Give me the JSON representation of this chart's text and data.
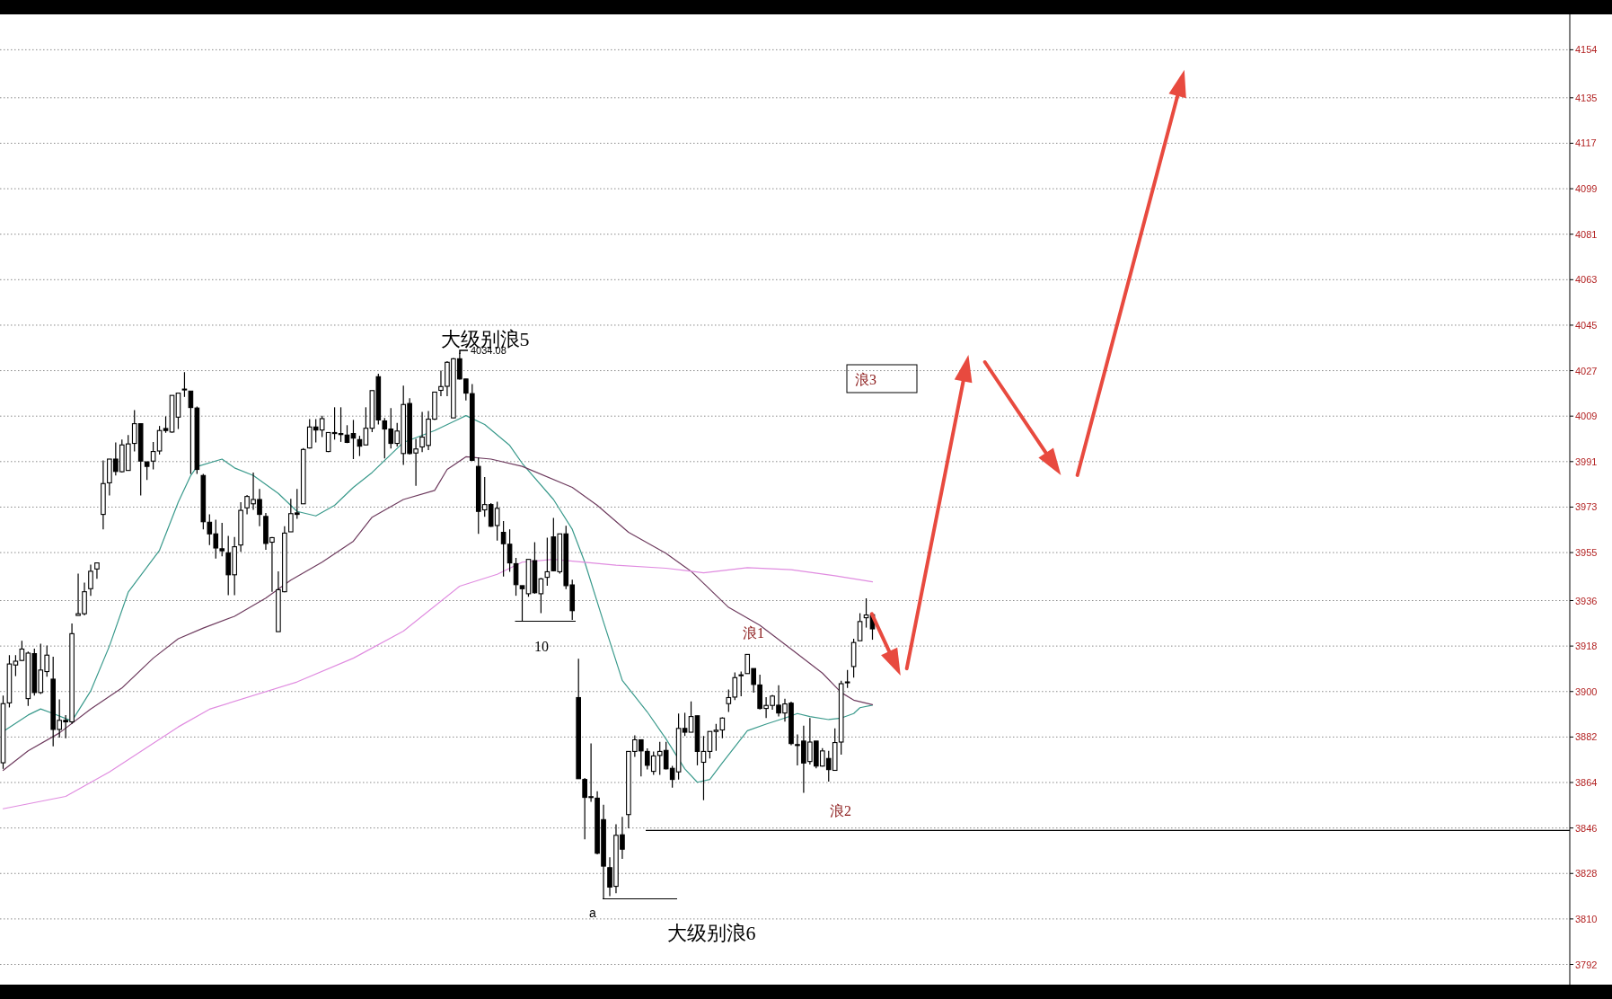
{
  "chart_data": {
    "type": "candlestick",
    "categories": [
      null,
      null,
      null,
      null,
      null,
      null,
      null,
      null,
      null,
      null,
      null,
      null,
      null,
      null,
      null,
      null,
      null,
      null,
      null,
      null,
      null,
      null,
      null,
      null,
      null,
      null,
      null,
      null,
      null,
      null,
      null,
      null,
      null,
      null,
      null,
      null,
      null,
      null,
      null,
      null,
      null,
      null,
      null,
      null,
      null,
      null,
      null,
      null,
      null,
      null,
      null,
      null,
      null,
      null,
      null,
      null,
      null,
      null,
      null,
      null,
      null,
      null,
      null,
      null,
      null,
      null,
      null,
      null,
      null,
      null,
      null,
      null,
      null,
      null,
      null,
      null,
      null,
      null,
      null,
      null,
      null,
      null,
      null,
      null,
      null,
      null,
      null,
      null,
      null,
      null,
      null,
      null,
      null,
      null,
      null,
      null,
      null,
      null,
      null,
      null,
      null,
      null,
      null,
      null,
      null,
      null,
      null,
      null,
      null,
      null,
      null,
      null,
      null,
      null,
      null,
      null,
      null,
      null,
      null,
      null,
      null,
      null,
      null,
      null,
      null,
      null,
      null,
      null,
      null,
      null,
      null,
      null,
      null,
      null,
      null,
      null,
      null,
      null,
      null,
      null,
      null,
      null,
      null,
      null,
      null,
      null,
      null,
      null,
      null,
      null,
      null,
      null,
      null,
      null,
      null,
      null,
      null,
      null,
      null,
      null,
      null,
      null,
      null,
      null,
      null,
      null,
      null,
      null,
      null,
      null,
      null,
      null,
      null,
      null,
      null,
      null,
      null,
      null,
      null,
      null,
      null,
      null,
      null,
      null,
      null,
      null,
      null,
      null,
      null,
      null,
      null,
      null,
      null,
      null,
      null,
      null,
      null,
      null,
      null,
      null,
      null,
      null,
      null,
      null,
      null,
      null,
      null,
      null,
      null,
      null,
      null,
      null,
      null,
      null,
      null,
      null,
      null,
      null,
      null,
      null,
      null,
      null,
      null,
      null,
      null,
      null,
      null,
      null,
      null,
      null,
      null,
      null,
      null,
      null,
      null,
      null,
      null,
      null,
      null,
      null,
      null,
      null,
      null,
      null,
      null,
      null,
      null,
      null,
      null,
      null,
      null
    ],
    "ohlc": [
      [
        3871.8,
        3898.4,
        3869.4,
        3895.2
      ],
      [
        3895.5,
        3914.4,
        3893.7,
        3910.9
      ],
      [
        3910.5,
        3914.4,
        3906.1,
        3912.0
      ],
      [
        3912.3,
        3920.1,
        3912.0,
        3916.8
      ],
      [
        3897.2,
        3915.8,
        3894.3,
        3915.2
      ],
      [
        3915.0,
        3917.0,
        3898.4,
        3899.6
      ],
      [
        3899.6,
        3918.9,
        3899.0,
        3908.5
      ],
      [
        3907.9,
        3918.2,
        3905.9,
        3914.4
      ],
      [
        3904.9,
        3913.8,
        3878.3,
        3885.0
      ],
      [
        3885.0,
        3896.9,
        3881.8,
        3888.6
      ],
      [
        3888.6,
        3890.7,
        3881.5,
        3888.0
      ],
      [
        3888.0,
        3926.9,
        3887.2,
        3922.9
      ],
      [
        3930.1,
        3946.7,
        3930.1,
        3930.8
      ],
      [
        3930.8,
        3943.1,
        3930.1,
        3939.5
      ],
      [
        3940.7,
        3950.2,
        3937.9,
        3947.6
      ],
      [
        3948.5,
        3950.9,
        3944.6,
        3950.9
      ],
      [
        3970.1,
        3991.5,
        3964.2,
        3982.3
      ],
      [
        3982.6,
        3992.0,
        3977.6,
        3992.0
      ],
      [
        3992.0,
        3998.6,
        3985.5,
        3987.1
      ],
      [
        3987.0,
        3999.7,
        3986.7,
        3997.6
      ],
      [
        3987.5,
        4001.5,
        3987.5,
        3998.0
      ],
      [
        3998.2,
        4011.4,
        3995.0,
        4006.0
      ],
      [
        4006.0,
        4006.0,
        3977.6,
        3991.2
      ],
      [
        3990.9,
        3990.9,
        3983.7,
        3989.1
      ],
      [
        3991.2,
        3998.8,
        3987.9,
        3995.0
      ],
      [
        3995.2,
        4005.1,
        3993.8,
        4003.3
      ],
      [
        4004.1,
        4008.9,
        4002.4,
        4003.3
      ],
      [
        4002.7,
        4017.2,
        4002.4,
        4017.2
      ],
      [
        4008.6,
        4018.1,
        4003.9,
        4018.1
      ],
      [
        4019.4,
        4026.4,
        4016.6,
        4019.7
      ],
      [
        4018.9,
        4018.9,
        3986.1,
        4012.4
      ],
      [
        4012.2,
        4012.8,
        3986.1,
        3987.9
      ],
      [
        3985.5,
        3986.1,
        3964.2,
        3967.2
      ],
      [
        3967.0,
        3970.1,
        3958.0,
        3962.4
      ],
      [
        3962.4,
        3968.0,
        3952.6,
        3956.8
      ],
      [
        3956.5,
        3966.8,
        3953.5,
        3955.7
      ],
      [
        3954.9,
        3961.6,
        3938.1,
        3946.2
      ],
      [
        3946.2,
        3961.2,
        3938.1,
        3957.3
      ],
      [
        3958.0,
        3974.9,
        3955.3,
        3971.7
      ],
      [
        3972.7,
        3977.8,
        3970.1,
        3977.2
      ],
      [
        3974.3,
        3986.7,
        3971.9,
        3976.0
      ],
      [
        3976.0,
        3980.2,
        3965.4,
        3970.1
      ],
      [
        3969.3,
        3970.7,
        3956.1,
        3958.6
      ],
      [
        3959.1,
        3961.2,
        3939.5,
        3960.9
      ],
      [
        3923.7,
        3947.6,
        3923.7,
        3940.3
      ],
      [
        3939.5,
        3965.4,
        3939.3,
        3962.7
      ],
      [
        3963.2,
        3976.3,
        3963.2,
        3970.4
      ],
      [
        3970.7,
        3980.2,
        3968.4,
        3970.1
      ],
      [
        3974.3,
        3996.4,
        3974.3,
        3995.8
      ],
      [
        3996.4,
        4007.8,
        3996.2,
        4004.7
      ],
      [
        4004.7,
        4007.8,
        3998.6,
        4003.5
      ],
      [
        4003.5,
        4009.2,
        4000.7,
        4008.0
      ],
      [
        3995.0,
        4002.5,
        3994.8,
        4002.5
      ],
      [
        4002.1,
        4012.5,
        3999.7,
        4002.5
      ],
      [
        4002.1,
        4012.5,
        3998.8,
        4001.7
      ],
      [
        4001.5,
        4005.4,
        3998.3,
        3998.6
      ],
      [
        4002.1,
        4007.5,
        3992.0,
        4000.3
      ],
      [
        3999.7,
        4001.2,
        3993.2,
        3997.1
      ],
      [
        3997.6,
        4012.5,
        3997.6,
        4004.2
      ],
      [
        4004.2,
        4019.1,
        4002.7,
        4019.1
      ],
      [
        4024.6,
        4025.8,
        4005.7,
        4007.5
      ],
      [
        4007.1,
        4008.3,
        3992.3,
        4003.9
      ],
      [
        4003.9,
        4012.2,
        3996.2,
        3998.2
      ],
      [
        3998.2,
        4006.3,
        3997.0,
        4003.1
      ],
      [
        3994.2,
        4021.1,
        3989.7,
        4013.6
      ],
      [
        4014.0,
        4016.1,
        3993.8,
        3994.2
      ],
      [
        3994.4,
        4000.0,
        3981.4,
        3996.0
      ],
      [
        3996.8,
        4010.7,
        3994.8,
        4000.7
      ],
      [
        3997.4,
        4011.0,
        3995.6,
        4007.8
      ],
      [
        4007.8,
        4018.7,
        4007.5,
        4018.5
      ],
      [
        4019.2,
        4027.0,
        4016.9,
        4020.7
      ],
      [
        4020.8,
        4030.8,
        4016.9,
        4030.3
      ],
      [
        4008.3,
        4032.0,
        4008.3,
        4031.7
      ],
      [
        4031.7,
        4034.08,
        4023.5,
        4023.7
      ],
      [
        4023.7,
        4023.7,
        4015.2,
        4018.1
      ],
      [
        4017.9,
        4021.7,
        3991.2,
        3991.5
      ],
      [
        3989.1,
        3992.6,
        3962.4,
        3971.3
      ],
      [
        3971.9,
        3984.9,
        3969.2,
        3974.0
      ],
      [
        3974.0,
        3974.6,
        3965.2,
        3965.4
      ],
      [
        3965.7,
        3975.1,
        3959.7,
        3972.5
      ],
      [
        3963.0,
        3967.5,
        3945.5,
        3958.5
      ],
      [
        3958.3,
        3964.2,
        3947.4,
        3950.9
      ],
      [
        3950.6,
        3952.9,
        3937.9,
        3942.3
      ],
      [
        3941.9,
        3941.9,
        3927.7,
        3940.7
      ],
      [
        3938.7,
        3952.3,
        3937.5,
        3952.3
      ],
      [
        3951.8,
        3959.1,
        3938.7,
        3939.1
      ],
      [
        3938.7,
        3945.0,
        3931.0,
        3944.6
      ],
      [
        3945.2,
        3960.9,
        3941.9,
        3947.4
      ],
      [
        3961.2,
        3968.7,
        3947.6,
        3947.8
      ],
      [
        3947.4,
        3962.4,
        3946.7,
        3962.4
      ],
      [
        3962.4,
        3965.6,
        3940.5,
        3941.9
      ],
      [
        3942.2,
        3944.3,
        3928.4,
        3932.0
      ],
      [
        3897.6,
        3913.0,
        3865.5,
        3865.5
      ],
      [
        3865.2,
        3865.8,
        3841.5,
        3858.1
      ],
      [
        3858.1,
        3879.5,
        3856.4,
        3858.4
      ],
      [
        3857.8,
        3860.5,
        3835.6,
        3836.0
      ],
      [
        3849.3,
        3855.2,
        3817.8,
        3830.9
      ],
      [
        3830.3,
        3834.4,
        3819.0,
        3822.6
      ],
      [
        3822.9,
        3847.5,
        3820.2,
        3843.1
      ],
      [
        3843.3,
        3850.4,
        3833.8,
        3837.6
      ],
      [
        3851.3,
        3876.3,
        3845.9,
        3876.3
      ],
      [
        3876.3,
        3882.7,
        3874.1,
        3880.9
      ],
      [
        3880.9,
        3880.9,
        3866.4,
        3876.5
      ],
      [
        3876.3,
        3877.5,
        3869.2,
        3870.8
      ],
      [
        3868.4,
        3876.3,
        3867.0,
        3874.5
      ],
      [
        3874.7,
        3880.1,
        3867.0,
        3876.3
      ],
      [
        3876.7,
        3880.1,
        3869.2,
        3869.4
      ],
      [
        3869.6,
        3870.6,
        3862.0,
        3865.2
      ],
      [
        3868.2,
        3891.3,
        3865.2,
        3885.4
      ],
      [
        3885.4,
        3891.6,
        3882.4,
        3883.9
      ],
      [
        3883.9,
        3896.1,
        3883.9,
        3890.1
      ],
      [
        3890.4,
        3890.4,
        3870.8,
        3876.3
      ],
      [
        3872.0,
        3882.4,
        3857.0,
        3876.3
      ],
      [
        3876.3,
        3884.2,
        3873.5,
        3884.2
      ],
      [
        3884.2,
        3887.2,
        3876.5,
        3884.7
      ],
      [
        3884.8,
        3889.8,
        3881.5,
        3889.5
      ],
      [
        3895.2,
        3900.8,
        3891.9,
        3897.6
      ],
      [
        3897.8,
        3907.6,
        3896.6,
        3905.5
      ],
      [
        3906.4,
        3907.9,
        3898.1,
        3906.6
      ],
      [
        3907.1,
        3914.7,
        3907.1,
        3914.7
      ],
      [
        3909.1,
        3909.1,
        3899.6,
        3902.8
      ],
      [
        3902.6,
        3906.7,
        3892.9,
        3893.3
      ],
      [
        3893.3,
        3897.8,
        3889.5,
        3894.5
      ],
      [
        3894.5,
        3898.7,
        3892.8,
        3898.2
      ],
      [
        3894.6,
        3902.5,
        3890.1,
        3891.5
      ],
      [
        3891.5,
        3897.2,
        3888.1,
        3895.1
      ],
      [
        3895.4,
        3896.0,
        3878.8,
        3879.4
      ],
      [
        3879.0,
        3883.0,
        3870.8,
        3878.7
      ],
      [
        3880.4,
        3886.5,
        3859.9,
        3871.7
      ],
      [
        3872.3,
        3889.5,
        3871.1,
        3880.0
      ],
      [
        3880.4,
        3880.4,
        3869.6,
        3870.5
      ],
      [
        3870.5,
        3877.6,
        3870.3,
        3876.5
      ],
      [
        3873.5,
        3876.5,
        3864.4,
        3869.1
      ],
      [
        3868.8,
        3885.4,
        3868.8,
        3879.8
      ],
      [
        3880.0,
        3904.3,
        3875.0,
        3903.1
      ],
      [
        3903.6,
        3908.5,
        3901.4,
        3903.8
      ],
      [
        3909.9,
        3920.9,
        3905.5,
        3919.4
      ],
      [
        3920.1,
        3931.0,
        3920.1,
        3927.7
      ],
      [
        3929.2,
        3936.9,
        3925.3,
        3930.3
      ],
      [
        3930.4,
        3931.0,
        3920.5,
        3924.8
      ],
      null,
      null,
      null,
      null,
      null,
      null,
      null,
      null,
      null,
      null,
      null,
      null,
      null,
      null,
      null,
      null,
      null,
      null,
      null,
      null,
      null,
      null,
      null,
      null,
      null,
      null,
      null,
      null,
      null,
      null,
      null,
      null,
      null,
      null,
      null,
      null,
      null,
      null,
      null,
      null,
      null,
      null,
      null,
      null,
      null,
      null,
      null,
      null,
      null,
      null,
      null,
      null,
      null,
      null,
      null,
      null,
      null,
      null,
      null,
      null,
      null,
      null,
      null,
      null,
      null,
      null,
      null,
      null,
      null,
      null,
      null,
      null,
      null,
      null,
      null,
      null,
      null,
      null,
      null,
      null,
      null,
      null,
      null,
      null,
      null,
      null,
      null,
      null,
      null,
      null,
      null,
      null,
      null,
      null,
      null,
      null,
      null,
      null,
      null,
      null,
      null,
      null,
      null,
      null,
      null,
      null,
      null,
      null,
      null,
      null,
      null
    ],
    "series": [
      {
        "type": "line",
        "color": "#3a9a8c",
        "values": [
          3884.2,
          null,
          null,
          null,
          3890.7,
          null,
          3893.1,
          null,
          3891.3,
          null,
          null,
          3888.3,
          null,
          null,
          3900.2,
          null,
          null,
          3918,
          null,
          null,
          3939.3,
          null,
          null,
          null,
          null,
          3955.9,
          null,
          null,
          3974.9,
          null,
          3985.5,
          3989,
          null,
          null,
          null,
          3992,
          null,
          3988.5,
          null,
          null,
          3985.5,
          null,
          null,
          null,
          3978.4,
          null,
          null,
          3971.3,
          null,
          null,
          3969.5,
          null,
          null,
          3973.7,
          null,
          null,
          3980.8,
          null,
          null,
          3986.7,
          null,
          null,
          null,
          null,
          3998.6,
          null,
          null,
          null,
          null,
          4003.3,
          null,
          null,
          null,
          null,
          4009.2,
          null,
          null,
          4005.7,
          null,
          null,
          null,
          3997.4,
          null,
          3990.3,
          null,
          null,
          null,
          null,
          3976,
          null,
          null,
          3964.2,
          null,
          3951.2,
          null,
          null,
          3927.5,
          null,
          null,
          3904.4,
          null,
          null,
          null,
          3891.9,
          null,
          null,
          3881.2,
          null,
          null,
          3869.4,
          null,
          3864.1,
          null,
          3865.2,
          null,
          3871.8,
          null,
          null,
          null,
          3884.5,
          null,
          null,
          3887.1,
          null,
          null,
          3889.5,
          null,
          3891.3,
          null,
          3890.1,
          null,
          null,
          3888.9,
          null,
          3889.5,
          null,
          3891.3,
          3893.6,
          null,
          3894.6,
          null,
          null,
          null,
          null,
          null,
          null,
          null,
          null,
          null,
          null,
          null,
          null,
          null,
          null,
          null,
          null,
          null,
          null,
          null,
          null,
          null,
          null,
          null,
          null,
          null,
          null,
          null,
          null,
          null,
          null,
          null,
          null,
          null,
          null,
          null,
          null,
          null,
          null,
          null,
          null,
          null,
          null,
          null,
          null,
          null,
          null,
          null,
          null,
          null,
          null,
          null,
          null,
          null,
          null,
          null,
          null,
          null,
          null,
          null,
          null,
          null,
          null,
          null,
          null,
          null,
          null,
          null,
          null,
          null,
          null,
          null,
          null,
          null,
          null,
          null,
          null,
          null,
          null,
          null,
          null,
          null,
          null,
          null,
          null,
          null,
          null,
          null,
          null,
          null,
          null,
          null,
          null,
          null,
          null,
          null,
          null,
          null,
          null,
          null,
          null,
          null,
          null,
          null,
          null,
          null,
          null,
          null,
          null,
          null,
          null,
          null
        ]
      },
      {
        "type": "line",
        "color": "#6e3b5e",
        "values": [
          3868.8,
          null,
          null,
          null,
          3876.5,
          null,
          null,
          null,
          null,
          3883.6,
          null,
          null,
          null,
          null,
          3893.1,
          null,
          null,
          null,
          null,
          3901.4,
          null,
          null,
          null,
          null,
          3913.2,
          null,
          null,
          null,
          3920.9,
          null,
          null,
          null,
          3925.1,
          null,
          null,
          null,
          null,
          3929.8,
          null,
          null,
          null,
          null,
          3937,
          null,
          null,
          null,
          3944.1,
          null,
          null,
          null,
          null,
          3951.2,
          null,
          null,
          null,
          null,
          3959.5,
          null,
          null,
          3969,
          null,
          null,
          null,
          null,
          3976,
          null,
          null,
          null,
          null,
          3979.6,
          null,
          3987.9,
          null,
          null,
          3992.9,
          null,
          null,
          null,
          3992,
          null,
          null,
          null,
          null,
          3989.1,
          null,
          null,
          null,
          null,
          null,
          null,
          null,
          3980.8,
          null,
          null,
          null,
          3973.7,
          null,
          null,
          null,
          null,
          3963,
          null,
          null,
          null,
          null,
          null,
          3954.7,
          null,
          null,
          null,
          3947.6,
          null,
          null,
          null,
          null,
          null,
          3933.3,
          null,
          null,
          null,
          null,
          3926.2,
          null,
          null,
          null,
          null,
          3916.8,
          null,
          null,
          null,
          null,
          3907.3,
          null,
          null,
          3899.6,
          null,
          3896.6,
          null,
          null,
          3894.8,
          null,
          null,
          null,
          null,
          null,
          null,
          null,
          null,
          null,
          null,
          null,
          null,
          null,
          null,
          null,
          null,
          null,
          null,
          null,
          null,
          null,
          null,
          null,
          null,
          null,
          null,
          null,
          null,
          null,
          null,
          null,
          null,
          null,
          null,
          null,
          null,
          null,
          null,
          null,
          null,
          null,
          null,
          null,
          null,
          null,
          null,
          null,
          null,
          null,
          null,
          null,
          null,
          null,
          null,
          null,
          null,
          null,
          null,
          null,
          null,
          null,
          null,
          null,
          null,
          null,
          null,
          null,
          null,
          null,
          null,
          null,
          null,
          null,
          null,
          null,
          null,
          null,
          null,
          null,
          null,
          null,
          null,
          null,
          null,
          null,
          null,
          null,
          null,
          null,
          null,
          null,
          null,
          null,
          null,
          null,
          null,
          null,
          null,
          null,
          null,
          null,
          null,
          null,
          null,
          null,
          null,
          null,
          null,
          null,
          null,
          null
        ]
      },
      {
        "type": "line",
        "color": "#e08ce0",
        "values": [
          3853.6,
          null,
          null,
          null,
          null,
          null,
          null,
          null,
          null,
          null,
          3858.5,
          null,
          null,
          null,
          null,
          null,
          null,
          3868.2,
          null,
          null,
          null,
          null,
          null,
          null,
          null,
          null,
          null,
          null,
          3886,
          null,
          null,
          null,
          null,
          3893,
          null,
          null,
          null,
          null,
          null,
          null,
          null,
          null,
          null,
          null,
          null,
          null,
          null,
          3903.8,
          null,
          null,
          null,
          null,
          null,
          null,
          null,
          null,
          3913.2,
          null,
          null,
          null,
          null,
          null,
          null,
          null,
          3923.9,
          null,
          null,
          null,
          null,
          null,
          null,
          null,
          null,
          3941.7,
          null,
          null,
          null,
          null,
          null,
          3946.4,
          null,
          null,
          null,
          3951.2,
          null,
          null,
          null,
          null,
          3952.3,
          null,
          null,
          null,
          null,
          null,
          null,
          null,
          null,
          null,
          3950,
          null,
          null,
          null,
          null,
          null,
          null,
          null,
          3948.8,
          null,
          null,
          null,
          null,
          null,
          3947,
          null,
          null,
          null,
          null,
          null,
          null,
          3949,
          null,
          null,
          null,
          null,
          null,
          null,
          3948.2,
          null,
          null,
          null,
          null,
          null,
          null,
          3945.8,
          null,
          null,
          null,
          null,
          null,
          3943.4,
          null,
          null,
          null,
          null,
          null,
          null,
          null,
          null,
          null,
          null,
          null,
          null,
          null,
          null,
          null,
          null,
          null,
          null,
          null,
          null,
          null,
          null,
          null,
          null,
          null,
          null,
          null,
          null,
          null,
          null,
          null,
          null,
          null,
          null,
          null,
          null,
          null,
          null,
          null,
          null,
          null,
          null,
          null,
          null,
          null,
          null,
          null,
          null,
          null,
          null,
          null,
          null,
          null,
          null,
          null,
          null,
          null,
          null,
          null,
          null,
          null,
          null,
          null,
          null,
          null,
          null,
          null,
          null,
          null,
          null,
          null,
          null,
          null,
          null,
          null,
          null,
          null,
          null,
          null,
          null,
          null,
          null,
          null,
          null,
          null,
          null,
          null,
          null,
          null,
          null,
          null,
          null,
          null,
          null,
          null,
          null,
          null,
          null,
          null,
          null,
          null,
          null,
          null,
          null,
          null,
          null,
          null,
          null,
          null,
          null,
          null
        ]
      }
    ],
    "ref_lines": [
      {
        "axis": "y",
        "value": 3845,
        "color": "#000000"
      }
    ],
    "ylim": [
      3784,
      4168
    ],
    "yticks": [
      3792,
      3810,
      3828,
      3846,
      3864,
      3882,
      3900,
      3918,
      3936,
      3955,
      3973,
      3991,
      4009,
      4027,
      4045,
      4063,
      4081,
      4099,
      4117,
      4135,
      4154
    ],
    "tick_labels": "y",
    "grid": "y",
    "annotations": [
      "大级别浪5",
      "4034.08",
      "10",
      "a",
      "大级别浪6",
      "浪1",
      "浪2",
      "浪3"
    ]
  }
}
